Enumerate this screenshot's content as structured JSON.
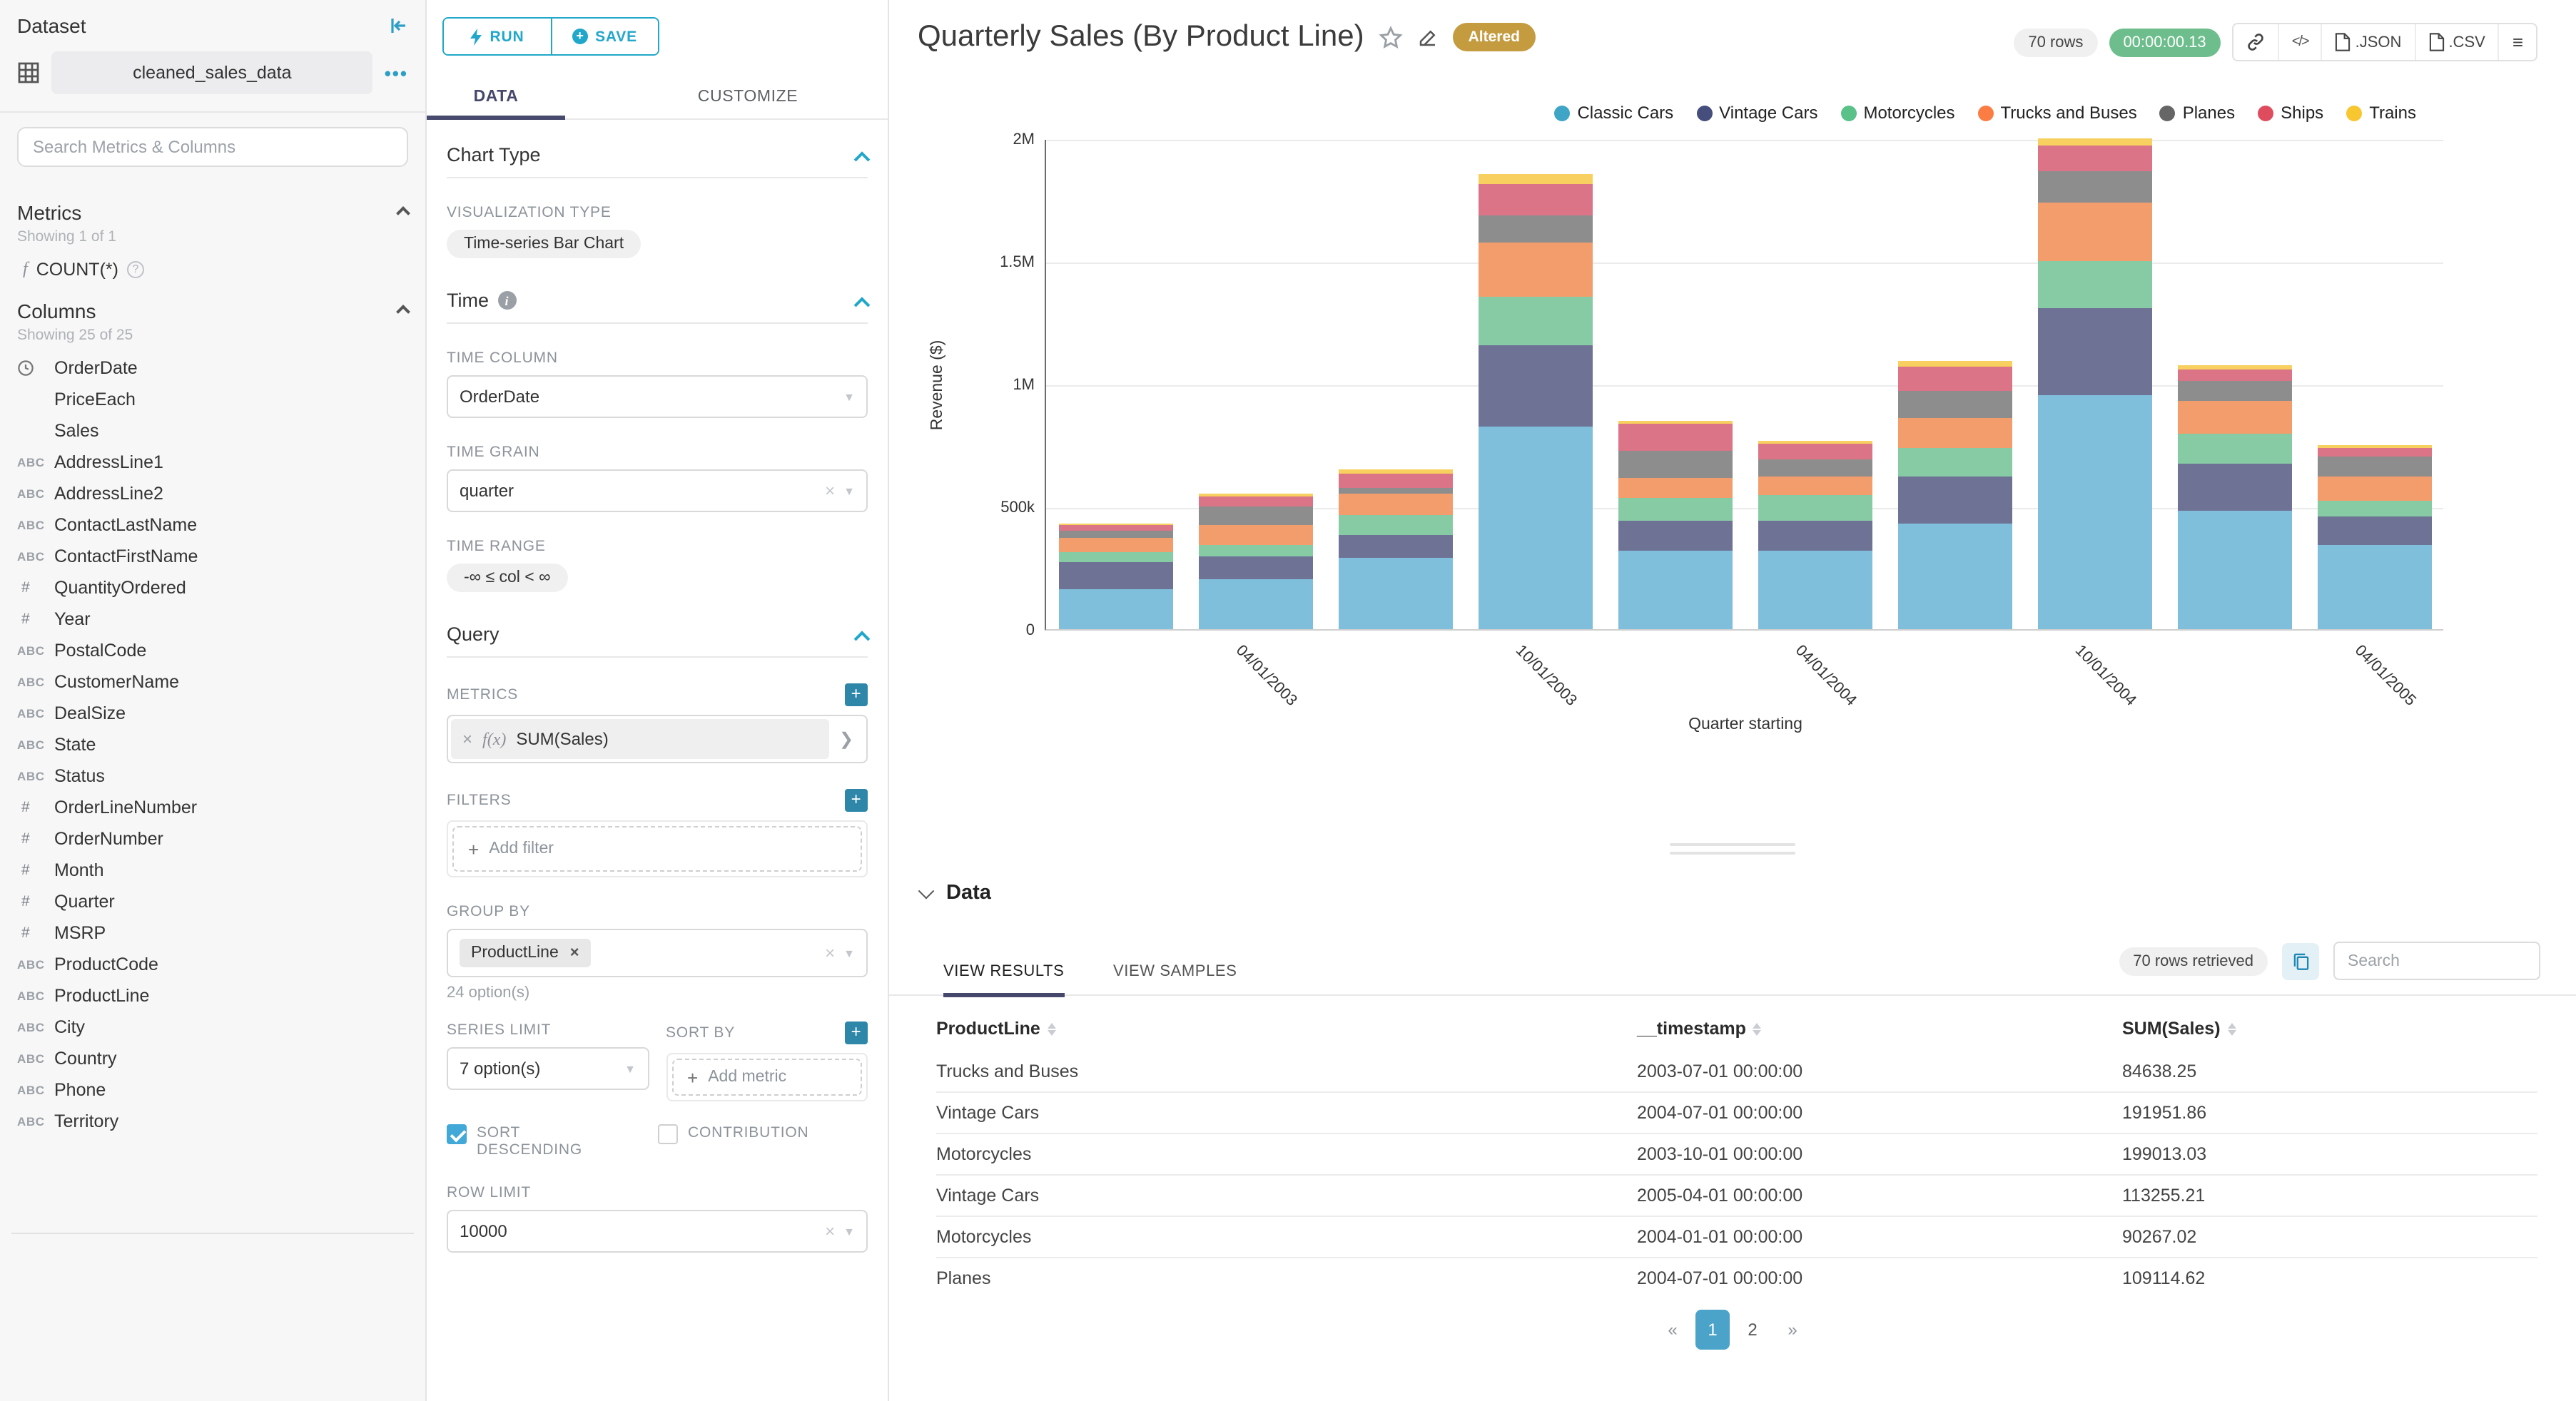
{
  "colors": {
    "accent": "#20A7C9",
    "tab_underline": "#484A6E",
    "altered_badge": "#C49B3F",
    "timer_green": "#6DBE8C",
    "active_page": "#4BA3C9",
    "checkbox_checked": "#41A8D8"
  },
  "sidebar": {
    "title": "Dataset",
    "dataset_name": "cleaned_sales_data",
    "more_dots": "•••",
    "search_placeholder": "Search Metrics & Columns",
    "metrics": {
      "title": "Metrics",
      "showing": "Showing 1 of 1",
      "items": [
        {
          "icon": "function",
          "fx": "f",
          "label": "COUNT(*)"
        }
      ]
    },
    "columns": {
      "title": "Columns",
      "showing": "Showing 25 of 25",
      "items": [
        {
          "icon": "clock",
          "label": "OrderDate"
        },
        {
          "icon": "none",
          "label": "PriceEach"
        },
        {
          "icon": "none",
          "label": "Sales"
        },
        {
          "icon": "abc",
          "label": "AddressLine1"
        },
        {
          "icon": "abc",
          "label": "AddressLine2"
        },
        {
          "icon": "abc",
          "label": "ContactLastName"
        },
        {
          "icon": "abc",
          "label": "ContactFirstName"
        },
        {
          "icon": "hash",
          "label": "QuantityOrdered"
        },
        {
          "icon": "hash",
          "label": "Year"
        },
        {
          "icon": "abc",
          "label": "PostalCode"
        },
        {
          "icon": "abc",
          "label": "CustomerName"
        },
        {
          "icon": "abc",
          "label": "DealSize"
        },
        {
          "icon": "abc",
          "label": "State"
        },
        {
          "icon": "abc",
          "label": "Status"
        },
        {
          "icon": "hash",
          "label": "OrderLineNumber"
        },
        {
          "icon": "hash",
          "label": "OrderNumber"
        },
        {
          "icon": "hash",
          "label": "Month"
        },
        {
          "icon": "hash",
          "label": "Quarter"
        },
        {
          "icon": "hash",
          "label": "MSRP"
        },
        {
          "icon": "abc",
          "label": "ProductCode"
        },
        {
          "icon": "abc",
          "label": "ProductLine"
        },
        {
          "icon": "abc",
          "label": "City"
        },
        {
          "icon": "abc",
          "label": "Country"
        },
        {
          "icon": "abc",
          "label": "Phone"
        },
        {
          "icon": "abc",
          "label": "Territory"
        }
      ]
    }
  },
  "controls": {
    "run_label": "RUN",
    "save_label": "SAVE",
    "tabs": {
      "data": "DATA",
      "customize": "CUSTOMIZE"
    },
    "chart_type": {
      "section": "Chart Type",
      "viz_label": "VISUALIZATION TYPE",
      "viz_value": "Time-series Bar Chart"
    },
    "time": {
      "section": "Time",
      "time_column_label": "TIME COLUMN",
      "time_column_value": "OrderDate",
      "time_grain_label": "TIME GRAIN",
      "time_grain_value": "quarter",
      "time_range_label": "TIME RANGE",
      "time_range_value": "-∞ ≤ col < ∞"
    },
    "query": {
      "section": "Query",
      "metrics_label": "METRICS",
      "metric_fx": "f(x)",
      "metric_value": "SUM(Sales)",
      "filters_label": "FILTERS",
      "add_filter": "Add filter",
      "group_by_label": "GROUP BY",
      "group_by_chip": "ProductLine",
      "group_by_hint": "24 option(s)",
      "series_limit_label": "SERIES LIMIT",
      "series_limit_value": "7 option(s)",
      "sort_by_label": "SORT BY",
      "add_metric": "Add metric",
      "sort_descending_label": "SORT DESCENDING",
      "contribution_label": "CONTRIBUTION",
      "row_limit_label": "ROW LIMIT",
      "row_limit_value": "10000"
    }
  },
  "header": {
    "title": "Quarterly Sales (By Product Line)",
    "altered_badge": "Altered",
    "rows_badge": "70 rows",
    "timer": "00:00:00.13",
    "export_json": ".JSON",
    "export_csv": ".CSV",
    "code_glyph": "</>",
    "menu_glyph": "≡"
  },
  "chart_data": {
    "type": "bar",
    "stacked": true,
    "xlabel": "Quarter starting",
    "ylabel": "Revenue ($)",
    "ylim": [
      0,
      2000000
    ],
    "grid": true,
    "legend_position": "top-right",
    "x": [
      "2003-01-01",
      "2003-04-01",
      "2003-07-01",
      "2003-10-01",
      "2004-01-01",
      "2004-04-01",
      "2004-07-01",
      "2004-10-01",
      "2005-01-01",
      "2005-04-01"
    ],
    "x_tick_labels": [
      {
        "index": 1,
        "label": "04/01/2003"
      },
      {
        "index": 3,
        "label": "10/01/2003"
      },
      {
        "index": 5,
        "label": "04/01/2004"
      },
      {
        "index": 7,
        "label": "10/01/2004"
      },
      {
        "index": 9,
        "label": "04/01/2005"
      }
    ],
    "yticks": [
      {
        "label": "0",
        "value": 0
      },
      {
        "label": "500k",
        "value": 500000
      },
      {
        "label": "1M",
        "value": 1000000
      },
      {
        "label": "1.5M",
        "value": 1500000
      },
      {
        "label": "2M",
        "value": 2000000
      }
    ],
    "series": [
      {
        "name": "Classic Cars",
        "legend_color": "#3FA5C7",
        "bar_color": "#7FBFDB",
        "values": [
          162000,
          205000,
          288000,
          828000,
          322000,
          322000,
          428000,
          960000,
          480000,
          345000
        ]
      },
      {
        "name": "Vintage Cars",
        "legend_color": "#454E7C",
        "bar_color": "#6E7396",
        "values": [
          110000,
          93000,
          96000,
          330000,
          120000,
          120000,
          191951.86,
          355000,
          193000,
          113255.21
        ]
      },
      {
        "name": "Motorcycles",
        "legend_color": "#5AC189",
        "bar_color": "#87CBA4",
        "values": [
          45000,
          43000,
          82000,
          199013.03,
          90267.02,
          103000,
          121000,
          195000,
          122000,
          66000
        ]
      },
      {
        "name": "Trucks and Buses",
        "legend_color": "#FC7D44",
        "bar_color": "#F39C6C",
        "values": [
          56000,
          82000,
          84638.25,
          216000,
          84000,
          80000,
          120000,
          235000,
          135000,
          98000
        ]
      },
      {
        "name": "Planes",
        "legend_color": "#666666",
        "bar_color": "#8D8D8D",
        "values": [
          26000,
          75000,
          27000,
          116000,
          110000,
          65000,
          109114.62,
          128000,
          83000,
          79000
        ]
      },
      {
        "name": "Ships",
        "legend_color": "#DE4C5E",
        "bar_color": "#DA7486",
        "values": [
          23000,
          41000,
          56000,
          123000,
          110000,
          65000,
          100000,
          107000,
          46000,
          35000
        ]
      },
      {
        "name": "Trains",
        "legend_color": "#F8C62F",
        "bar_color": "#F7D05F",
        "values": [
          10000,
          15000,
          15000,
          46000,
          15000,
          15000,
          25000,
          30000,
          15000,
          14000
        ]
      }
    ]
  },
  "results": {
    "section_title": "Data",
    "tab_results": "VIEW RESULTS",
    "tab_samples": "VIEW SAMPLES",
    "retrieved_badge": "70 rows retrieved",
    "search_placeholder": "Search",
    "columns": [
      "ProductLine",
      "__timestamp",
      "SUM(Sales)"
    ],
    "rows": [
      [
        "Trucks and Buses",
        "2003-07-01 00:00:00",
        "84638.25"
      ],
      [
        "Vintage Cars",
        "2004-07-01 00:00:00",
        "191951.86"
      ],
      [
        "Motorcycles",
        "2003-10-01 00:00:00",
        "199013.03"
      ],
      [
        "Vintage Cars",
        "2005-04-01 00:00:00",
        "113255.21"
      ],
      [
        "Motorcycles",
        "2004-01-01 00:00:00",
        "90267.02"
      ],
      [
        "Planes",
        "2004-07-01 00:00:00",
        "109114.62"
      ]
    ],
    "pagination": [
      {
        "label": "«",
        "type": "prev",
        "active": false
      },
      {
        "label": "1",
        "type": "page",
        "active": true
      },
      {
        "label": "2",
        "type": "page",
        "active": false
      },
      {
        "label": "»",
        "type": "next",
        "active": false
      }
    ]
  }
}
